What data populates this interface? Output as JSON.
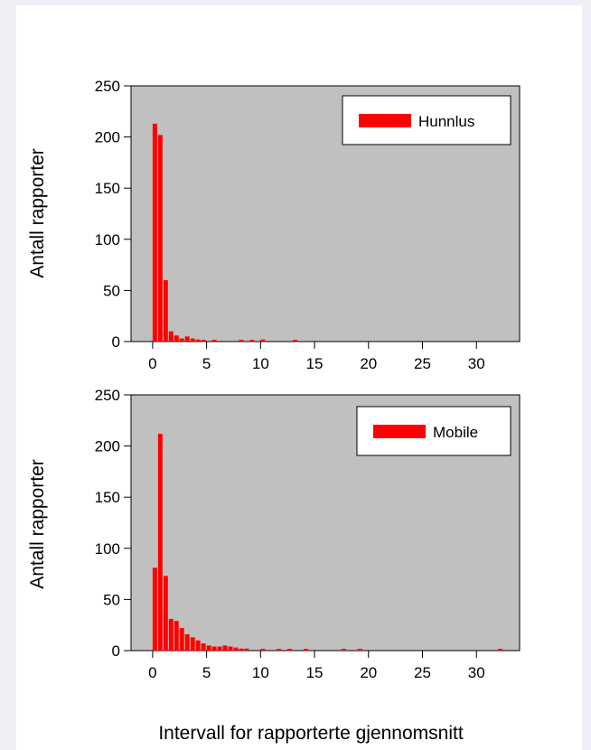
{
  "figure": {
    "xlabel": "Intervall for rapporterte gjennomsnitt",
    "colors": {
      "bar": "#ff0000",
      "panel": "#c0c0c0",
      "page": "#eff0f5"
    }
  },
  "chart_data": [
    {
      "type": "bar",
      "name": "Hunnlus",
      "legend": "Hunnlus",
      "legend_position": "top-right",
      "ylabel": "Antall rapporter",
      "xlabel": "",
      "xlim": [
        -2,
        34
      ],
      "ylim": [
        0,
        250
      ],
      "xticks": [
        0,
        5,
        10,
        15,
        20,
        25,
        30
      ],
      "yticks": [
        0,
        50,
        100,
        150,
        200,
        250
      ],
      "bin_width": 0.5,
      "x": [
        0,
        0.5,
        1,
        1.5,
        2,
        2.5,
        3,
        3.5,
        4,
        4.5,
        5.5,
        8,
        9,
        10,
        13
      ],
      "values": [
        213,
        202,
        60,
        10,
        6,
        3,
        5,
        3,
        2,
        1,
        1,
        1,
        1,
        2,
        1
      ]
    },
    {
      "type": "bar",
      "name": "Mobile",
      "legend": "Mobile",
      "legend_position": "top-right",
      "ylabel": "Antall rapporter",
      "xlabel": "",
      "xlim": [
        -2,
        34
      ],
      "ylim": [
        0,
        250
      ],
      "xticks": [
        0,
        5,
        10,
        15,
        20,
        25,
        30
      ],
      "yticks": [
        0,
        50,
        100,
        150,
        200,
        250
      ],
      "bin_width": 0.5,
      "x": [
        0,
        0.5,
        1,
        1.5,
        2,
        2.5,
        3,
        3.5,
        4,
        4.5,
        5,
        5.5,
        6,
        6.5,
        7,
        7.5,
        8,
        8.5,
        10,
        11.5,
        12.5,
        14,
        17.5,
        19,
        32
      ],
      "values": [
        81,
        212,
        73,
        31,
        29,
        22,
        16,
        13,
        10,
        7,
        5,
        4,
        4,
        5,
        4,
        3,
        2,
        2,
        1,
        1,
        1,
        1,
        1,
        1,
        1
      ]
    }
  ]
}
